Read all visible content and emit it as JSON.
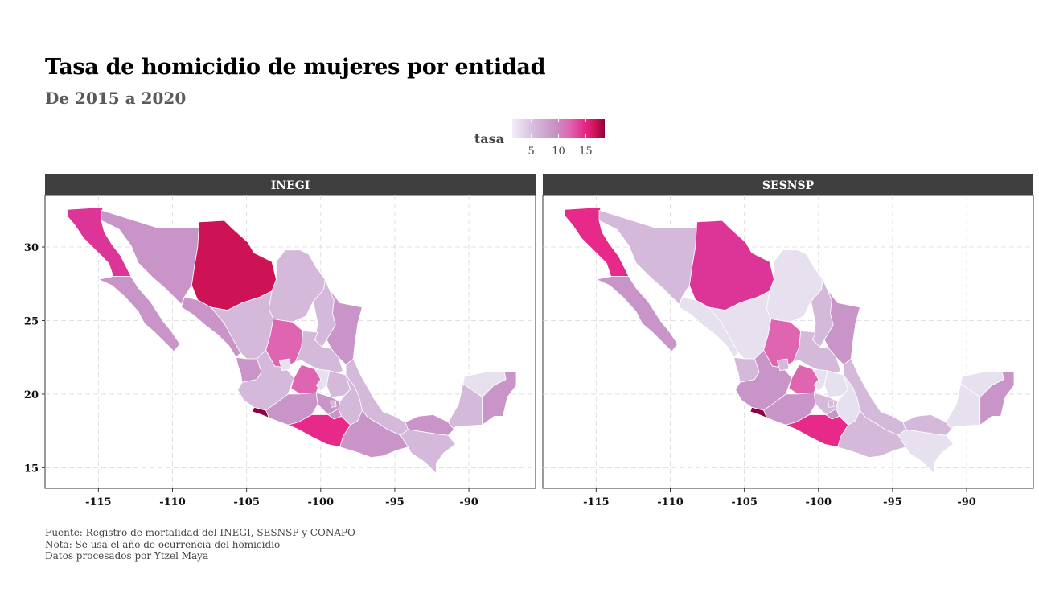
{
  "title": "Tasa de homicidio de mujeres por entidad",
  "subtitle": "De 2015 a 2020",
  "legend": {
    "title": "tasa",
    "ticks": [
      5,
      10,
      15
    ],
    "range": [
      1.5,
      18.5
    ],
    "colors": [
      "#f1eef6",
      "#d4b9da",
      "#c994c7",
      "#df65b0",
      "#e7298a",
      "#ce1256",
      "#91003f"
    ]
  },
  "x_axis": {
    "ticks": [
      -115,
      -110,
      -105,
      -100,
      -95,
      -90
    ],
    "tick_labels": [
      "-115",
      "-110",
      "-105",
      "-100",
      "-95",
      "-90"
    ]
  },
  "y_axis": {
    "ticks": [
      15,
      20,
      25,
      30
    ],
    "tick_labels": [
      "15",
      "20",
      "25",
      "30"
    ]
  },
  "panels": [
    {
      "strip": "INEGI"
    },
    {
      "strip": "SESNSP"
    }
  ],
  "caption": {
    "line1": "Fuente: Registro de mortalidad del INEGI, SESNSP y CONAPO",
    "line2": "Nota: Se usa el año de ocurrencia del homicidio",
    "line3": "Datos procesados por Ytzel Maya"
  }
}
